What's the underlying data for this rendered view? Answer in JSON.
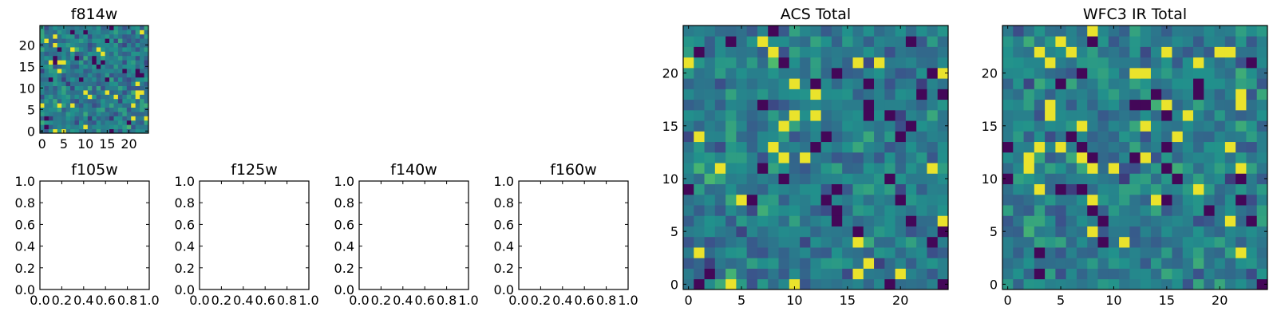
{
  "colormap": [
    "#440154",
    "#3b528b",
    "#21918c",
    "#5ec962",
    "#fde725"
  ],
  "chart_data": [
    {
      "type": "heatmap",
      "title": "f814w",
      "grid_size": 25,
      "xlim": [
        -0.5,
        24.5
      ],
      "ylim": [
        -0.5,
        24.5
      ],
      "xticks": [
        "0",
        "5",
        "10",
        "15",
        "20"
      ],
      "yticks": [
        "0",
        "5",
        "10",
        "15",
        "20"
      ],
      "grid": false,
      "has_image": true
    },
    {
      "type": "heatmap",
      "title": "f105w",
      "xlim": [
        0,
        1
      ],
      "ylim": [
        0,
        1
      ],
      "xticks": [
        "0.0",
        "0.2",
        "0.4",
        "0.6",
        "0.8",
        "1.0"
      ],
      "yticks": [
        "0.0",
        "0.2",
        "0.4",
        "0.6",
        "0.8",
        "1.0"
      ],
      "grid": false,
      "has_image": false
    },
    {
      "type": "heatmap",
      "title": "f125w",
      "xlim": [
        0,
        1
      ],
      "ylim": [
        0,
        1
      ],
      "xticks": [
        "0.0",
        "0.2",
        "0.4",
        "0.6",
        "0.8",
        "1.0"
      ],
      "yticks": [
        "0.0",
        "0.2",
        "0.4",
        "0.6",
        "0.8",
        "1.0"
      ],
      "grid": false,
      "has_image": false
    },
    {
      "type": "heatmap",
      "title": "f140w",
      "xlim": [
        0,
        1
      ],
      "ylim": [
        0,
        1
      ],
      "xticks": [
        "0.0",
        "0.2",
        "0.4",
        "0.6",
        "0.8",
        "1.0"
      ],
      "yticks": [
        "0.0",
        "0.2",
        "0.4",
        "0.6",
        "0.8",
        "1.0"
      ],
      "grid": false,
      "has_image": false
    },
    {
      "type": "heatmap",
      "title": "f160w",
      "xlim": [
        0,
        1
      ],
      "ylim": [
        0,
        1
      ],
      "xticks": [
        "0.0",
        "0.2",
        "0.4",
        "0.6",
        "0.8",
        "1.0"
      ],
      "yticks": [
        "0.0",
        "0.2",
        "0.4",
        "0.6",
        "0.8",
        "1.0"
      ],
      "grid": false,
      "has_image": false
    },
    {
      "type": "heatmap",
      "title": "ACS Total",
      "grid_size": 25,
      "xlim": [
        -0.5,
        24.5
      ],
      "ylim": [
        -0.5,
        24.5
      ],
      "xticks": [
        "0",
        "5",
        "10",
        "15",
        "20"
      ],
      "yticks": [
        "0",
        "5",
        "10",
        "15",
        "20"
      ],
      "grid": false,
      "has_image": true
    },
    {
      "type": "heatmap",
      "title": "WFC3 IR Total",
      "grid_size": 25,
      "xlim": [
        -0.5,
        24.5
      ],
      "ylim": [
        -0.5,
        24.5
      ],
      "xticks": [
        "0",
        "5",
        "10",
        "15",
        "20"
      ],
      "yticks": [
        "0",
        "5",
        "10",
        "15",
        "20"
      ],
      "grid": false,
      "has_image": true
    }
  ]
}
